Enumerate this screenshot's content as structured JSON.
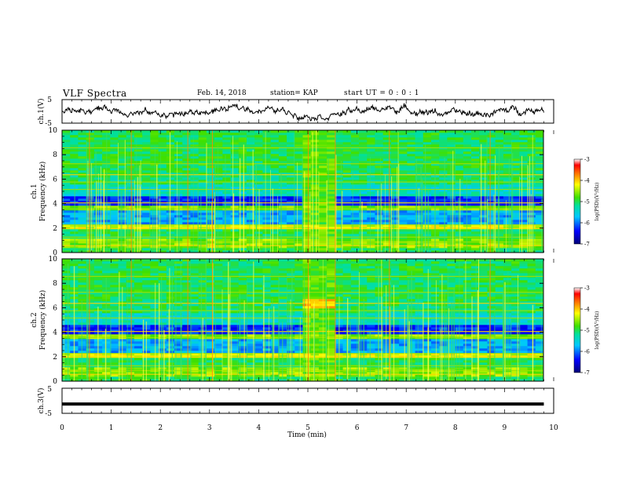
{
  "header": {
    "title": "VLF Spectra",
    "date": "Feb. 14, 2018",
    "station": "station= KAP",
    "start": "start  UT =   0 : 0  : 1"
  },
  "chart_data": [
    {
      "type": "line",
      "panel": "ch1-waveform",
      "ylabel": "ch.1(V)",
      "ylim": [
        -5,
        5
      ],
      "yticks": [
        "5",
        "-5"
      ],
      "xlim": [
        0,
        10
      ],
      "series": [
        {
          "color": "#000000"
        }
      ]
    },
    {
      "type": "heatmap",
      "panel": "ch1-spectrogram",
      "ylabel_line1": "ch.1",
      "ylabel_line2": "Frequency  (kHz)",
      "ylim": [
        0,
        10
      ],
      "yticks": [
        "0",
        "2",
        "4",
        "6",
        "8",
        "10"
      ],
      "xlim": [
        0,
        10
      ],
      "colorbar": {
        "label": "log(PSD)(V²/Hz)",
        "ticks": [
          "-3",
          "-4",
          "-5",
          "-6",
          "-7"
        ],
        "range": [
          -7,
          -3
        ]
      },
      "notable": {
        "time_min": [
          4.95,
          5.55
        ],
        "feature": "enhanced broadband emission"
      }
    },
    {
      "type": "heatmap",
      "panel": "ch2-spectrogram",
      "ylabel_line1": "ch.2",
      "ylabel_line2": "Frequency  (kHz)",
      "ylim": [
        0,
        10
      ],
      "yticks": [
        "0",
        "2",
        "4",
        "6",
        "8",
        "10"
      ],
      "xlim": [
        0,
        10
      ],
      "colorbar": {
        "label": "log(PSD)(V²/Hz)",
        "ticks": [
          "-3",
          "-4",
          "-5",
          "-6",
          "-7"
        ],
        "range": [
          -7,
          -3
        ]
      },
      "notable": {
        "time_min": [
          4.95,
          5.55
        ],
        "feature": "enhanced broadband emission"
      }
    },
    {
      "type": "line",
      "panel": "ch3-waveform",
      "ylabel": "ch.3(V)",
      "ylim": [
        -5,
        5
      ],
      "yticks": [
        "5",
        "-5"
      ],
      "xlim": [
        0,
        10
      ],
      "xlabel": "Time  (min)",
      "xticks": [
        "0",
        "1",
        "2",
        "3",
        "4",
        "5",
        "6",
        "7",
        "8",
        "9",
        "10"
      ],
      "series": [
        {
          "constant_value": -1.3,
          "end_time_min": 9.8,
          "color": "#000000"
        }
      ]
    }
  ]
}
